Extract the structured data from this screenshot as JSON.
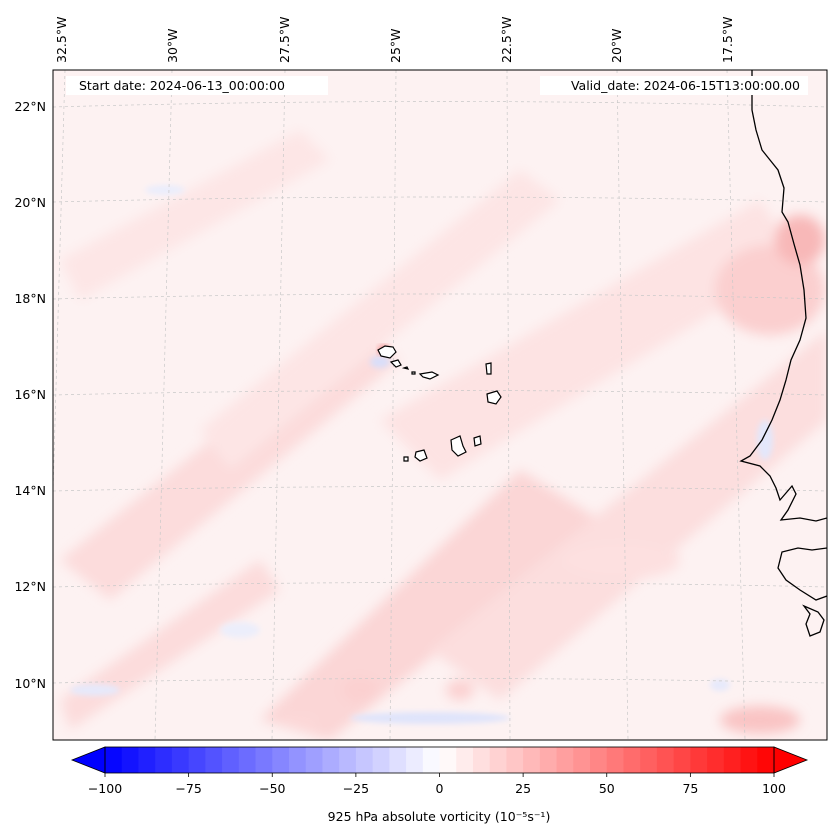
{
  "header": {
    "start_date": "Start date: 2024-06-13_00:00:00",
    "valid_date": "Valid_date: 2024-06-15T13:00:00.00"
  },
  "axes": {
    "longitude_labels": [
      "32.5°W",
      "30°W",
      "27.5°W",
      "25°W",
      "22.5°W",
      "20°W",
      "17.5°W"
    ],
    "latitude_labels": [
      "22°N",
      "20°N",
      "18°N",
      "16°N",
      "14°N",
      "12°N",
      "10°N"
    ]
  },
  "colorbar": {
    "label": "925 hPa absolute vorticity (10⁻⁵s⁻¹)",
    "tick_labels": [
      "−100",
      "−75",
      "−50",
      "−25",
      "0",
      "25",
      "50",
      "75",
      "100"
    ],
    "colormap": "bwr",
    "low_color": "#0000ff",
    "mid_color": "#ffffff",
    "high_color": "#ff0000"
  },
  "colors": {
    "coastline": "#000000",
    "gridline": "#c8c8c8",
    "field_background": "#fdf1f1"
  }
}
